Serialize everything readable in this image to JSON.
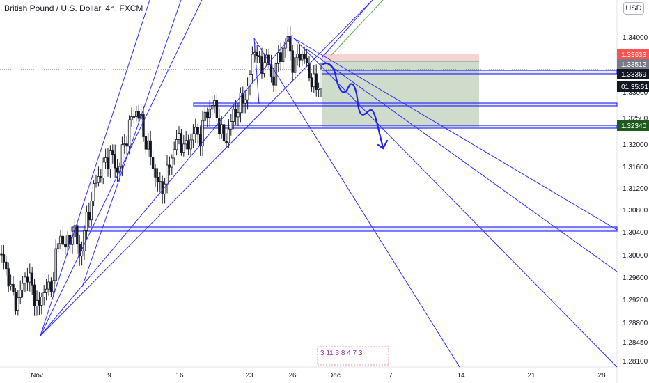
{
  "header": {
    "title": "British Pound / U.S. Dollar, 4h, FXCM",
    "currency": "USD"
  },
  "chart_data": {
    "type": "candlestick",
    "title": "British Pound / U.S. Dollar, 4h, FXCM",
    "y_ticks": [
      1.34,
      1.33,
      1.325,
      1.32,
      1.316,
      1.312,
      1.308,
      1.304,
      1.3,
      1.296,
      1.292,
      1.288,
      1.2845,
      1.281
    ],
    "y_tick_labels": [
      "1.34000",
      "1.33000",
      "1.32500",
      "1.32000",
      "1.31600",
      "1.31200",
      "1.30800",
      "1.30400",
      "1.30000",
      "1.29600",
      "1.29200",
      "1.28800",
      "1.28450",
      "1.28100"
    ],
    "x_ticks": [
      "Nov",
      "9",
      "16",
      "23",
      "26",
      "Dec",
      "7",
      "14",
      "21",
      "28"
    ],
    "price_tags": [
      {
        "label": "1.33633",
        "bg": "#ff5252",
        "fg": "#ffffff"
      },
      {
        "label": "1.33512",
        "bg": "#787b86",
        "fg": "#ffffff"
      },
      {
        "label": "1.33369",
        "bg": "#131722",
        "fg": "#ffffff"
      },
      {
        "label": "01:35:51",
        "bg": "#131722",
        "fg": "#ffffff"
      },
      {
        "label": "1.32340",
        "bg": "#1e5a1e",
        "fg": "#ffffff"
      }
    ],
    "event_markers": "3 11 3 8 4 7 3",
    "colors": {
      "candle": "#131722",
      "trendline": "#2b2bff",
      "arrow": "#2020ee",
      "profit_zone": "#cfdccb",
      "loss_zone": "#f5d3d3"
    }
  }
}
